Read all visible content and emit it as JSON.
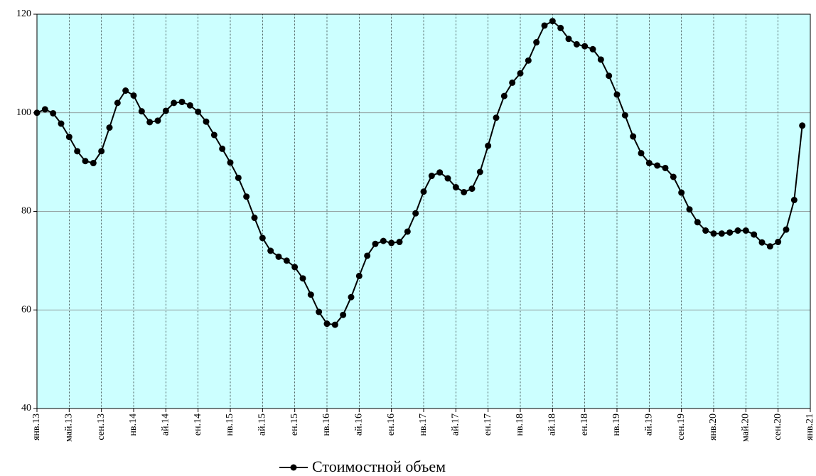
{
  "chart_data": {
    "type": "line",
    "categories": [
      "янв.13",
      null,
      null,
      null,
      "май.13",
      null,
      null,
      null,
      "сен.13",
      null,
      null,
      null,
      "нв.14",
      null,
      null,
      null,
      "ай.14",
      null,
      null,
      null,
      "ен.14",
      null,
      null,
      null,
      "нв.15",
      null,
      null,
      null,
      "ай.15",
      null,
      null,
      null,
      "ен.15",
      null,
      null,
      null,
      "нв.16",
      null,
      null,
      null,
      "ай.16",
      null,
      null,
      null,
      "ен.16",
      null,
      null,
      null,
      "нв.17",
      null,
      null,
      null,
      "ай.17",
      null,
      null,
      null,
      "ен.17",
      null,
      null,
      null,
      "нв.18",
      null,
      null,
      null,
      "ай.18",
      null,
      null,
      null,
      "ен.18",
      null,
      null,
      null,
      "нв.19",
      null,
      null,
      null,
      "ай.19",
      null,
      null,
      null,
      "сен.19",
      null,
      null,
      null,
      "янв.20",
      null,
      null,
      null,
      "май.20",
      null,
      null,
      null,
      "сен.20",
      null,
      null,
      null,
      "янв.21"
    ],
    "series": [
      {
        "name": "Стоимостной объем",
        "color": "#000000",
        "values": [
          100,
          100.7,
          99.9,
          97.8,
          95.1,
          92.2,
          90.2,
          89.8,
          92.2,
          97.0,
          102.0,
          104.5,
          103.5,
          100.3,
          98.1,
          98.4,
          100.4,
          102.0,
          102.2,
          101.5,
          100.2,
          98.2,
          95.5,
          92.7,
          89.9,
          86.8,
          83.0,
          78.7,
          74.6,
          72.0,
          70.8,
          70.0,
          68.7,
          66.4,
          63.1,
          59.6,
          57.2,
          57.0,
          59.0,
          62.6,
          66.9,
          71.0,
          73.4,
          74.0,
          73.6,
          73.8,
          75.9,
          79.6,
          84.0,
          87.2,
          87.9,
          86.7,
          84.9,
          83.9,
          84.6,
          88.0,
          93.3,
          99.0,
          103.4,
          106.1,
          108.0,
          110.6,
          114.3,
          117.7,
          118.6,
          117.2,
          115.0,
          113.9,
          113.5,
          112.9,
          110.8,
          107.5,
          103.7,
          99.5,
          95.2,
          91.8,
          89.8,
          89.3,
          88.8,
          87.0,
          83.8,
          80.4,
          77.8,
          76.1,
          75.5,
          75.5,
          75.7,
          76.1,
          76.1,
          75.3,
          73.7,
          72.9,
          73.8,
          76.3,
          82.3,
          97.4,
          null
        ]
      }
    ],
    "ylim": [
      40,
      120
    ],
    "yticks": [
      40,
      60,
      80,
      100,
      120
    ],
    "grid": true,
    "background": "#ccffff",
    "legend": "bottom"
  }
}
